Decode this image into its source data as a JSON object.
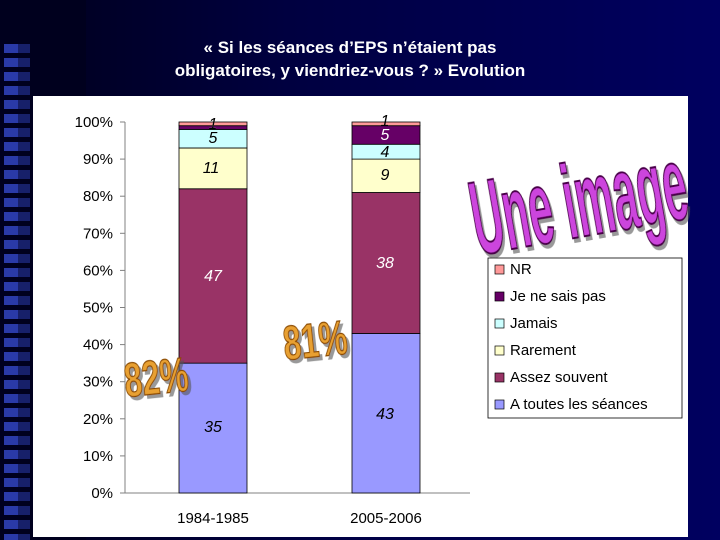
{
  "slide": {
    "title_line1": "« Si les séances d’EPS n’étaient pas",
    "title_line2": "obligatoires, y viendriez-vous ? » Evolution"
  },
  "colors": {
    "nr": "#FF9999",
    "ne_sais_pas": "#660066",
    "jamais": "#CCFFFF",
    "rarement": "#FFFFCC",
    "assez_souvent": "#993366",
    "toutes": "#9999FF",
    "wordart": "#CC44DD",
    "highlight": "#E8A030"
  },
  "chart_data": {
    "type": "bar",
    "stacked": true,
    "categories": [
      "1984-1985",
      "2005-2006"
    ],
    "ylim": [
      0,
      100
    ],
    "yticks": [
      "0%",
      "10%",
      "20%",
      "30%",
      "40%",
      "50%",
      "60%",
      "70%",
      "80%",
      "90%",
      "100%"
    ],
    "grid": false,
    "legend_position": "right",
    "series": [
      {
        "name": "A toutes les séances",
        "values": [
          35,
          43
        ],
        "labels": [
          "35",
          "43"
        ],
        "color": "#9999FF"
      },
      {
        "name": "Assez souvent",
        "values": [
          47,
          38
        ],
        "labels": [
          "47",
          "38"
        ],
        "color": "#993366"
      },
      {
        "name": "Rarement",
        "values": [
          11,
          9
        ],
        "labels": [
          "11",
          "9"
        ],
        "color": "#FFFFCC"
      },
      {
        "name": "Jamais",
        "values": [
          5,
          4
        ],
        "labels": [
          "5",
          "4"
        ],
        "color": "#CCFFFF"
      },
      {
        "name": "Je ne sais pas",
        "values": [
          1,
          5
        ],
        "labels": [
          "1",
          "5"
        ],
        "color": "#660066"
      },
      {
        "name": "NR",
        "values": [
          1,
          1
        ],
        "labels": [
          "1",
          "1"
        ],
        "color": "#FF9999"
      }
    ],
    "legend_order": [
      "NR",
      "Je ne sais pas",
      "Jamais",
      "Rarement",
      "Assez souvent",
      "A toutes les séances"
    ],
    "annotations": {
      "wordart": "Une image",
      "callout_1": "82%",
      "callout_2": "81%"
    }
  }
}
